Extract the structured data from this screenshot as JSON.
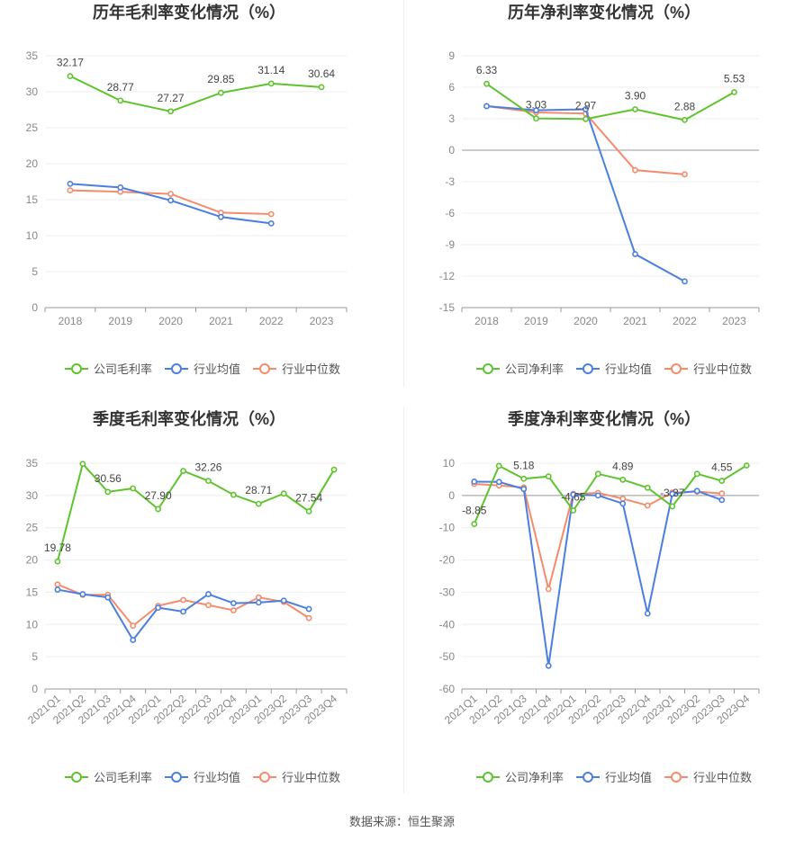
{
  "colors": {
    "company": "#5ec42d",
    "avg": "#4a7fe0",
    "median": "#f58b6b",
    "grid": "#eeeeee",
    "axis": "#999999"
  },
  "source_text": "数据来源：恒生聚源",
  "chart_data": [
    {
      "type": "line",
      "title": "历年毛利率变化情况（%）",
      "categories": [
        "2018",
        "2019",
        "2020",
        "2021",
        "2022",
        "2023"
      ],
      "ylim": [
        0,
        35
      ],
      "yticks": [
        0,
        5,
        10,
        15,
        20,
        25,
        30,
        35
      ],
      "legend_position": "bottom",
      "series": [
        {
          "name": "公司毛利率",
          "color": "#5ec42d",
          "values": [
            32.17,
            28.77,
            27.27,
            29.85,
            31.14,
            30.64
          ],
          "labeled": true
        },
        {
          "name": "行业均值",
          "color": "#4a7fe0",
          "values": [
            17.2,
            16.7,
            14.9,
            12.6,
            11.7,
            null
          ],
          "labeled": false
        },
        {
          "name": "行业中位数",
          "color": "#f58b6b",
          "values": [
            16.3,
            16.1,
            15.8,
            13.2,
            13.0,
            null
          ],
          "labeled": false
        }
      ],
      "data_labels": [
        "32.17",
        "28.77",
        "27.27",
        "29.85",
        "31.14",
        "30.64"
      ]
    },
    {
      "type": "line",
      "title": "历年净利率变化情况（%）",
      "categories": [
        "2018",
        "2019",
        "2020",
        "2021",
        "2022",
        "2023"
      ],
      "ylim": [
        -15,
        9
      ],
      "yticks": [
        -15,
        -12,
        -9,
        -6,
        -3,
        0,
        3,
        6,
        9
      ],
      "legend_position": "bottom",
      "series": [
        {
          "name": "公司净利率",
          "color": "#5ec42d",
          "values": [
            6.33,
            3.03,
            2.97,
            3.9,
            2.88,
            5.53
          ],
          "labeled": true
        },
        {
          "name": "行业均值",
          "color": "#4a7fe0",
          "values": [
            4.2,
            3.8,
            3.9,
            -9.9,
            -12.5,
            null
          ],
          "labeled": false
        },
        {
          "name": "行业中位数",
          "color": "#f58b6b",
          "values": [
            4.2,
            3.6,
            3.5,
            -1.9,
            -2.3,
            null
          ],
          "labeled": false
        }
      ],
      "data_labels": [
        "6.33",
        "3.03",
        "2.97",
        "3.90",
        "2.88",
        "5.53"
      ]
    },
    {
      "type": "line",
      "title": "季度毛利率变化情况（%）",
      "categories": [
        "2021Q1",
        "2021Q2",
        "2021Q3",
        "2021Q4",
        "2022Q1",
        "2022Q2",
        "2022Q3",
        "2022Q4",
        "2023Q1",
        "2023Q2",
        "2023Q3",
        "2023Q4"
      ],
      "ylim": [
        0,
        35
      ],
      "yticks": [
        0,
        5,
        10,
        15,
        20,
        25,
        30,
        35
      ],
      "legend_position": "bottom",
      "series": [
        {
          "name": "公司毛利率",
          "color": "#5ec42d",
          "values": [
            19.78,
            34.9,
            30.56,
            31.1,
            27.9,
            33.8,
            32.26,
            30.1,
            28.71,
            30.3,
            27.54,
            34.0
          ],
          "labeled": true
        },
        {
          "name": "行业均值",
          "color": "#4a7fe0",
          "values": [
            15.4,
            14.7,
            14.2,
            7.6,
            12.6,
            12.0,
            14.7,
            13.3,
            13.4,
            13.7,
            12.4,
            null
          ],
          "labeled": false
        },
        {
          "name": "行业中位数",
          "color": "#f58b6b",
          "values": [
            16.2,
            14.6,
            14.6,
            9.8,
            12.9,
            13.8,
            13.0,
            12.2,
            14.2,
            13.5,
            11.0,
            null
          ],
          "labeled": false
        }
      ],
      "data_labels": [
        "19.78",
        "",
        "30.56",
        "",
        "27.90",
        "",
        "32.26",
        "",
        "28.71",
        "",
        "27.54",
        ""
      ]
    },
    {
      "type": "line",
      "title": "季度净利率变化情况（%）",
      "categories": [
        "2021Q1",
        "2021Q2",
        "2021Q3",
        "2021Q4",
        "2022Q1",
        "2022Q2",
        "2022Q3",
        "2022Q4",
        "2023Q1",
        "2023Q2",
        "2023Q3",
        "2023Q4"
      ],
      "ylim": [
        -60,
        10
      ],
      "yticks": [
        -60,
        -50,
        -40,
        -30,
        -20,
        -10,
        0,
        10
      ],
      "legend_position": "bottom",
      "series": [
        {
          "name": "公司净利率",
          "color": "#5ec42d",
          "values": [
            -8.85,
            9.2,
            5.18,
            5.9,
            -4.65,
            6.7,
            4.89,
            2.4,
            -3.37,
            6.7,
            4.55,
            9.3
          ],
          "labeled": true
        },
        {
          "name": "行业均值",
          "color": "#4a7fe0",
          "values": [
            4.3,
            4.2,
            2.0,
            -52.8,
            0.3,
            0.0,
            -2.5,
            -36.6,
            0.5,
            1.4,
            -1.4,
            null
          ],
          "labeled": false
        },
        {
          "name": "行业中位数",
          "color": "#f58b6b",
          "values": [
            3.6,
            3.1,
            2.5,
            -29.0,
            0.5,
            0.8,
            -1.0,
            -3.1,
            0.9,
            1.2,
            0.6,
            null
          ],
          "labeled": false
        }
      ],
      "data_labels": [
        "-8.85",
        "",
        "5.18",
        "",
        "-4.65",
        "",
        "4.89",
        "",
        "-3.37",
        "",
        "4.55",
        ""
      ]
    }
  ]
}
